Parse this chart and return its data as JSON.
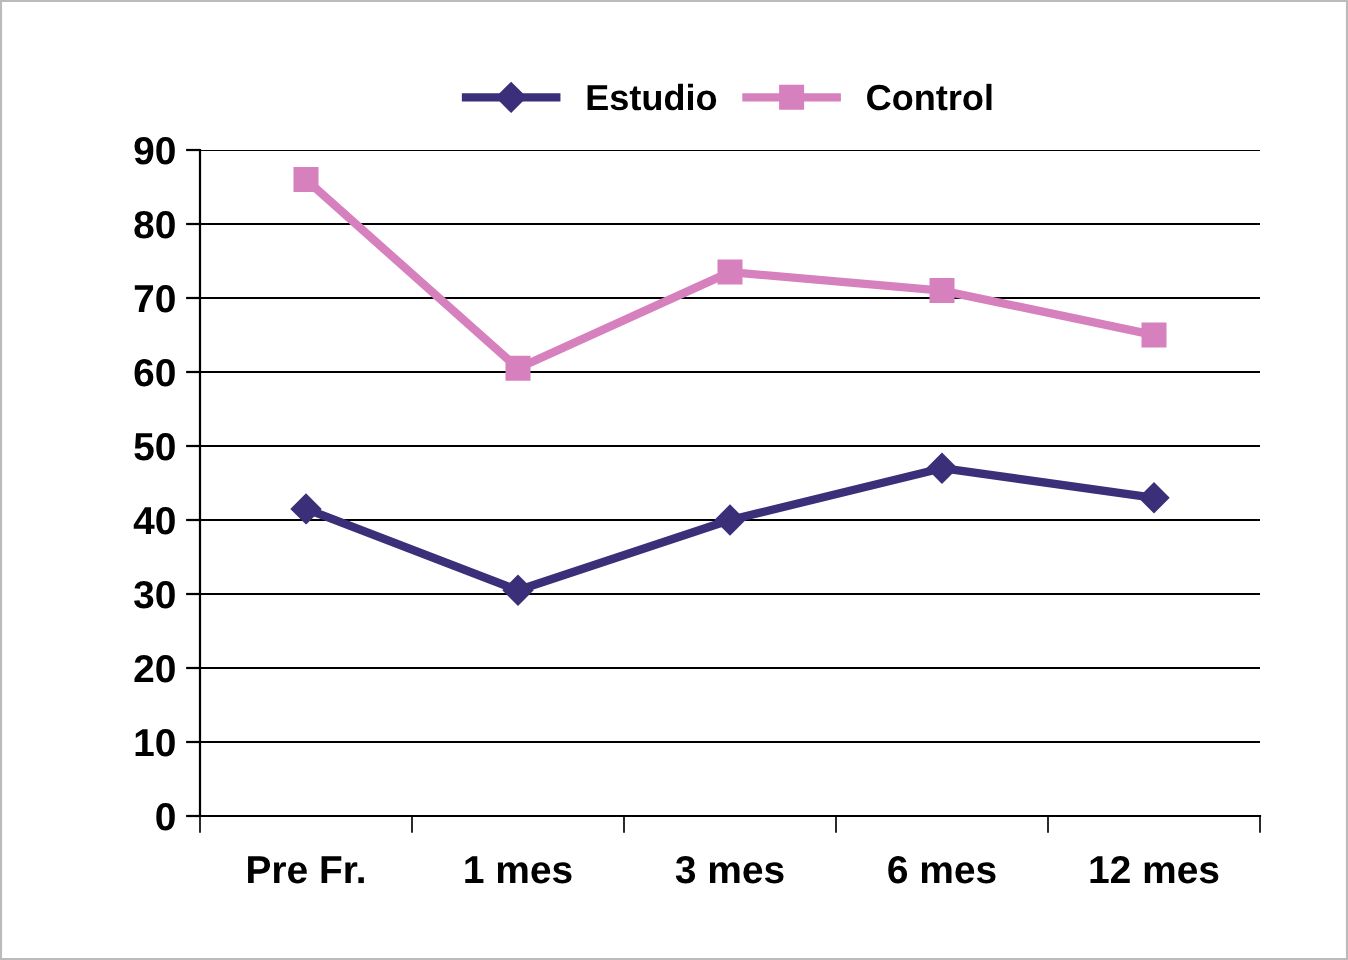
{
  "chart_data": {
    "type": "line",
    "categories": [
      "Pre Fr.",
      "1 mes",
      "3 mes",
      "6 mes",
      "12 mes"
    ],
    "series": [
      {
        "name": "Estudio",
        "color": "#3b2f7a",
        "marker": "diamond",
        "values": [
          41.5,
          30.5,
          40,
          47,
          43
        ]
      },
      {
        "name": "Control",
        "color": "#d680be",
        "marker": "square",
        "values": [
          86,
          60.5,
          73.5,
          71,
          65
        ]
      }
    ],
    "ylim": [
      0,
      90
    ],
    "yticks": [
      0,
      10,
      20,
      30,
      40,
      50,
      60,
      70,
      80,
      90
    ],
    "grid": "y",
    "legend": "top",
    "line_style": "solid"
  }
}
